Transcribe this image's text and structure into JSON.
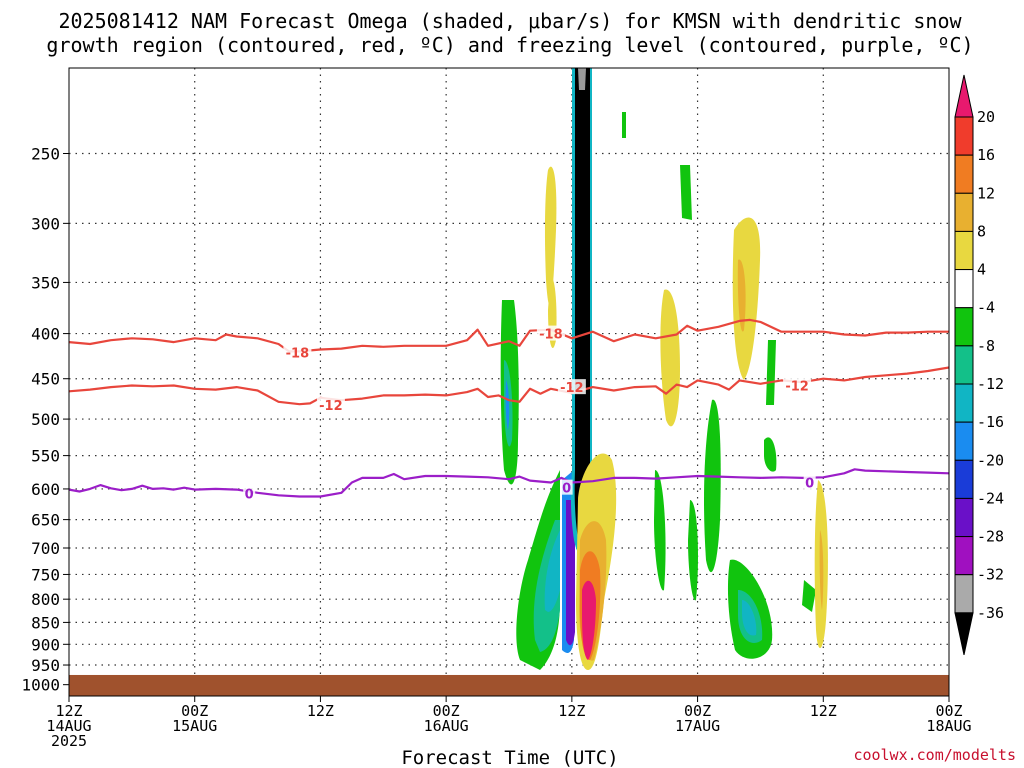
{
  "chart_data": {
    "type": "time-height",
    "title_lines": [
      "2025081412 NAM Forecast Omega (shaded, μbar/s) for KMSN with dendritic snow",
      "growth region (contoured, red, ºC) and freezing level (contoured, purple, ºC)"
    ],
    "xlabel": "Forecast Time (UTC)",
    "credit": "coolwx.com/modelts",
    "y_scale": "log-pressure",
    "y_range_hpa": [
      1030,
      200
    ],
    "x_range_hours": [
      0,
      84
    ],
    "y_ticks": [
      250,
      300,
      350,
      400,
      450,
      500,
      550,
      600,
      650,
      700,
      750,
      800,
      850,
      900,
      950,
      1000
    ],
    "x_ticks": [
      {
        "hour": 0,
        "line1": "12Z",
        "line2": "14AUG",
        "line3": "2025"
      },
      {
        "hour": 12,
        "line1": "00Z",
        "line2": "15AUG",
        "line3": ""
      },
      {
        "hour": 24,
        "line1": "12Z",
        "line2": "",
        "line3": ""
      },
      {
        "hour": 36,
        "line1": "00Z",
        "line2": "16AUG",
        "line3": ""
      },
      {
        "hour": 48,
        "line1": "12Z",
        "line2": "",
        "line3": ""
      },
      {
        "hour": 60,
        "line1": "00Z",
        "line2": "17AUG",
        "line3": ""
      },
      {
        "hour": 72,
        "line1": "12Z",
        "line2": "",
        "line3": ""
      },
      {
        "hour": 84,
        "line1": "00Z",
        "line2": "18AUG",
        "line3": ""
      }
    ],
    "grid": true,
    "ground_level_hpa": 975,
    "ground_color": "#a0522d",
    "colorbar": {
      "labels": [
        "20",
        "16",
        "12",
        "8",
        "4",
        "-4",
        "-8",
        "-12",
        "-16",
        "-20",
        "-24",
        "-28",
        "-32",
        "-36"
      ],
      "colors": [
        "#e8196e",
        "#f03c2c",
        "#f07c22",
        "#e8b030",
        "#e8d840",
        "#ffffff",
        "#11c40e",
        "#13c089",
        "#11b5c4",
        "#1a8cf0",
        "#1a3cd8",
        "#6a10c8",
        "#a010c0",
        "#aaaaaa",
        "#000000"
      ],
      "top_triangle_color": "#e8196e",
      "bottom_triangle_color": "#000000"
    },
    "contour_labels": [
      {
        "text": "-18",
        "hour": 21.8,
        "p": 420,
        "color": "#e8463c"
      },
      {
        "text": "-18",
        "hour": 46.0,
        "p": 400,
        "color": "#e8463c"
      },
      {
        "text": "-12",
        "hour": 25.0,
        "p": 482,
        "color": "#e8463c"
      },
      {
        "text": "-12",
        "hour": 48.0,
        "p": 460,
        "color": "#e8463c"
      },
      {
        "text": "-12",
        "hour": 69.5,
        "p": 458,
        "color": "#e8463c"
      },
      {
        "text": "0",
        "hour": 17.2,
        "p": 607,
        "color": "#9b1ec8"
      },
      {
        "text": "0",
        "hour": 47.5,
        "p": 598,
        "color": "#9b1ec8"
      },
      {
        "text": "0",
        "hour": 70.7,
        "p": 590,
        "color": "#9b1ec8"
      }
    ],
    "series": [
      {
        "name": "-18",
        "color": "#e8463c",
        "x": [
          0,
          2,
          4,
          6,
          8,
          10,
          12,
          14,
          15,
          16,
          18,
          20,
          21,
          22,
          24,
          26,
          28,
          30,
          32,
          34,
          36,
          38,
          39,
          40,
          42,
          43,
          44,
          46,
          48,
          50,
          52,
          54,
          56,
          58,
          59,
          60,
          62,
          64,
          65,
          66,
          68,
          70,
          72,
          74,
          76,
          78,
          80,
          82,
          84
        ],
        "y": [
          409,
          411,
          407,
          405,
          406,
          409,
          405,
          407,
          401,
          403,
          405,
          411,
          419,
          419,
          417,
          416,
          413,
          414,
          413,
          413,
          413,
          407,
          396,
          413,
          408,
          413,
          397,
          396,
          405,
          398,
          408,
          401,
          405,
          401,
          392,
          397,
          393,
          387,
          386,
          388,
          398,
          398,
          398,
          401,
          402,
          399,
          399,
          398,
          398
        ]
      },
      {
        "name": "-12",
        "color": "#e8463c",
        "x": [
          0,
          2,
          4,
          6,
          8,
          10,
          12,
          14,
          16,
          18,
          20,
          22,
          23,
          24,
          26,
          28,
          30,
          32,
          34,
          36,
          38,
          39,
          40,
          41,
          42,
          43,
          44,
          45,
          46,
          48,
          50,
          52,
          54,
          56,
          57,
          58,
          59,
          60,
          62,
          63,
          64,
          66,
          68,
          70,
          72,
          74,
          76,
          78,
          80,
          82,
          84
        ],
        "y": [
          465,
          463,
          460,
          458,
          459,
          458,
          462,
          463,
          460,
          464,
          478,
          481,
          480,
          473,
          476,
          474,
          470,
          470,
          469,
          470,
          466,
          462,
          472,
          470,
          476,
          478,
          462,
          468,
          462,
          467,
          460,
          464,
          460,
          459,
          468,
          457,
          460,
          452,
          457,
          463,
          452,
          456,
          452,
          454,
          450,
          452,
          448,
          446,
          444,
          441,
          437
        ]
      },
      {
        "name": "0",
        "color": "#9b1ec8",
        "x": [
          0,
          1,
          2,
          3,
          4,
          5,
          6,
          7,
          8,
          9,
          10,
          11,
          12,
          14,
          16,
          18,
          20,
          22,
          24,
          26,
          27,
          28,
          30,
          31,
          32,
          34,
          36,
          38,
          40,
          42,
          43,
          44,
          46,
          47,
          48,
          50,
          52,
          54,
          56,
          58,
          60,
          62,
          64,
          66,
          68,
          70,
          72,
          74,
          75,
          76,
          78,
          80,
          82,
          84
        ],
        "y": [
          601,
          604,
          600,
          594,
          599,
          602,
          600,
          595,
          600,
          599,
          601,
          598,
          601,
          600,
          601,
          606,
          610,
          612,
          612,
          606,
          590,
          583,
          583,
          577,
          585,
          580,
          580,
          581,
          582,
          585,
          581,
          587,
          590,
          583,
          590,
          588,
          583,
          583,
          584,
          582,
          580,
          581,
          582,
          583,
          582,
          583,
          582,
          576,
          570,
          572,
          573,
          574,
          575,
          576
        ]
      }
    ]
  }
}
